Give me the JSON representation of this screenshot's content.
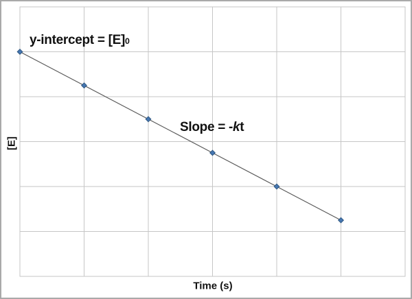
{
  "colors": {
    "outer_border": "#a9a9a9",
    "plot_border": "#c6c6c6",
    "gridline": "#c6c6c6",
    "series_line": "#595959",
    "marker_fill": "#4677b2",
    "marker_edge": "#2f5781",
    "text": "#111111",
    "background": "#ffffff"
  },
  "chart_data": {
    "type": "line",
    "title": "",
    "xlabel": "Time (s)",
    "ylabel": "[E]",
    "x": [
      0,
      1,
      2,
      3,
      4,
      5
    ],
    "y": [
      5.0,
      4.25,
      3.5,
      2.75,
      2.0,
      1.25
    ],
    "slope_per_unit": -0.75,
    "xlim": [
      0,
      6
    ],
    "ylim": [
      0,
      6
    ],
    "grid": true,
    "grid_step": 1,
    "tick_labels": "none",
    "legend_position": "none",
    "marker_shape": "diamond",
    "annotations": {
      "y_intercept": {
        "text": "y-intercept = [E]",
        "sub": "0"
      },
      "slope": {
        "prefix": "Slope = -",
        "k": "k",
        "t": "t"
      }
    }
  }
}
